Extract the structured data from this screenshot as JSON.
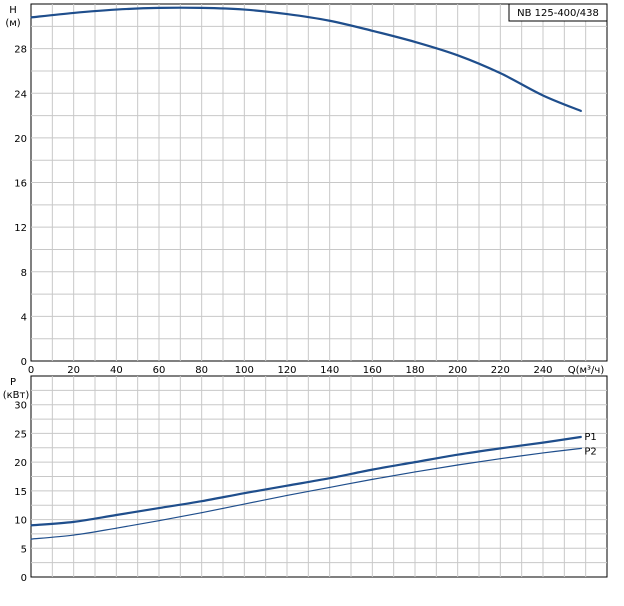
{
  "model_label": "NB 125-400/438",
  "colors": {
    "curve": "#1f4e8c",
    "grid": "#c8c8c8",
    "axis": "#000000"
  },
  "chart_data": [
    {
      "type": "line",
      "ylabel_line1": "H",
      "ylabel_line2": "(м)",
      "xlabel": "Q(м³/ч)",
      "xlim": [
        0,
        270
      ],
      "ylim": [
        0,
        32
      ],
      "x_ticks": [
        0,
        20,
        40,
        60,
        80,
        100,
        120,
        140,
        160,
        180,
        200,
        220,
        240
      ],
      "y_ticks": [
        0,
        4,
        8,
        12,
        16,
        20,
        24,
        28
      ],
      "grid": true,
      "series": [
        {
          "x": [
            0,
            20,
            40,
            60,
            80,
            100,
            120,
            140,
            160,
            180,
            200,
            220,
            240,
            258
          ],
          "y": [
            30.8,
            31.2,
            31.5,
            31.65,
            31.65,
            31.5,
            31.1,
            30.5,
            29.6,
            28.6,
            27.4,
            25.8,
            23.8,
            22.4
          ]
        }
      ]
    },
    {
      "type": "line",
      "ylabel_line1": "P",
      "ylabel_line2": "(кВт)",
      "xlim": [
        0,
        270
      ],
      "ylim": [
        0,
        35
      ],
      "y_ticks": [
        0,
        5,
        10,
        15,
        20,
        25,
        30
      ],
      "grid": true,
      "series": [
        {
          "name": "P1",
          "x": [
            0,
            20,
            40,
            60,
            80,
            100,
            120,
            140,
            160,
            180,
            200,
            220,
            240,
            258
          ],
          "y": [
            9.0,
            9.6,
            10.8,
            12.0,
            13.2,
            14.6,
            15.9,
            17.2,
            18.7,
            20.0,
            21.3,
            22.4,
            23.4,
            24.4
          ]
        },
        {
          "name": "P2",
          "x": [
            0,
            20,
            40,
            60,
            80,
            100,
            120,
            140,
            160,
            180,
            200,
            220,
            240,
            258
          ],
          "y": [
            6.6,
            7.3,
            8.5,
            9.8,
            11.2,
            12.7,
            14.2,
            15.6,
            17.0,
            18.3,
            19.5,
            20.6,
            21.6,
            22.4
          ]
        }
      ]
    }
  ]
}
